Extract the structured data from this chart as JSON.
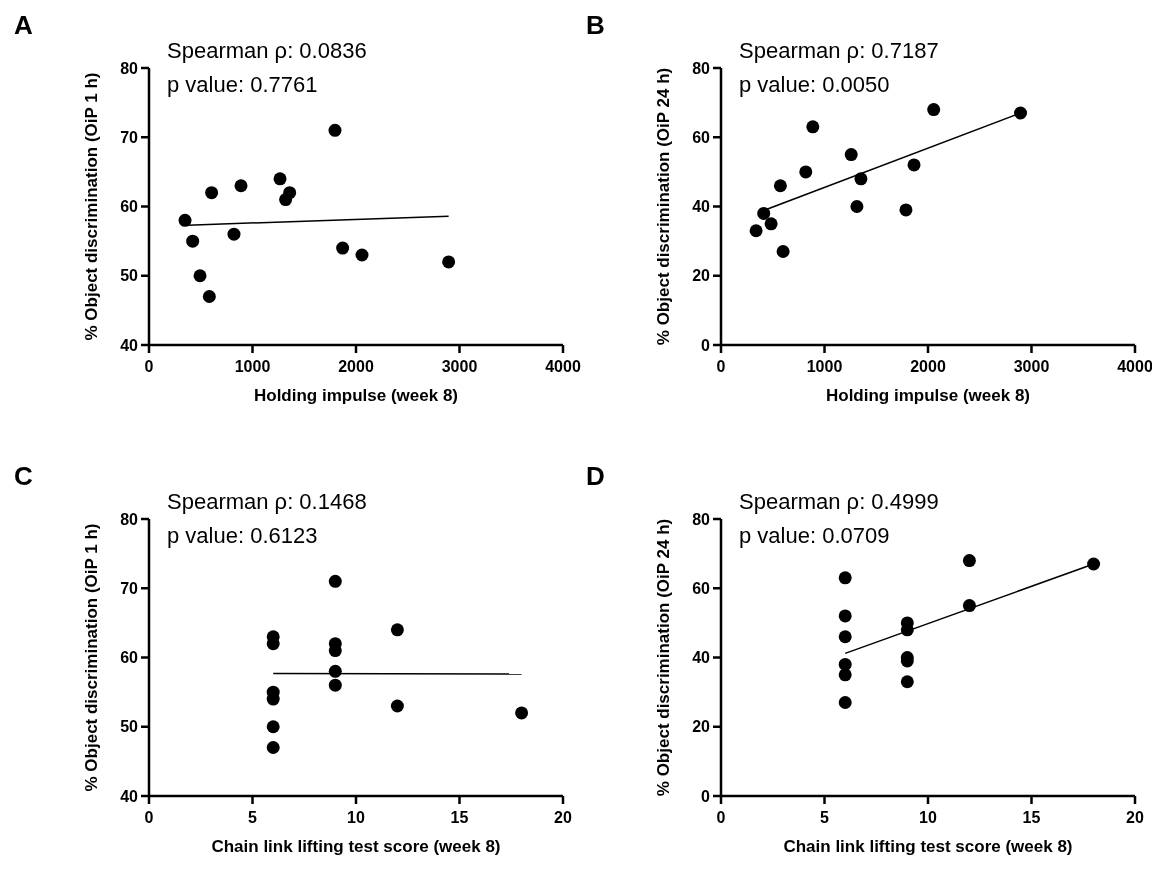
{
  "chart_data": [
    {
      "type": "scatter",
      "title": "A",
      "xlabel": "Holding impulse (week 8)",
      "ylabel": "% Object discrimination (OiP 1 h)",
      "annotations": [
        "Spearman ρ: 0.0836",
        "p value: 0.7761"
      ],
      "xlim": [
        0,
        4000
      ],
      "xticks": [
        0,
        1000,
        2000,
        3000,
        4000
      ],
      "ylim": [
        40,
        80
      ],
      "yticks": [
        40,
        50,
        60,
        70,
        80
      ],
      "grid": false,
      "series": [
        {
          "marker": "circle",
          "color": "#000000",
          "x": [
            348,
            422,
            493,
            583,
            605,
            821,
            889,
            1266,
            1320,
            1359,
            1797,
            1871,
            2058,
            2895
          ],
          "values": [
            58,
            55,
            50,
            47,
            62,
            56,
            63,
            64,
            61,
            62,
            71,
            54,
            53,
            52
          ]
        },
        {
          "type": "line",
          "marker": "none",
          "color": "#000000",
          "x": [
            374,
            2895
          ],
          "values": [
            57.3,
            58.6
          ]
        }
      ]
    },
    {
      "type": "scatter",
      "title": "B",
      "xlabel": "Holding impulse (week 8)",
      "ylabel": "% Object discrimination (OiP 24 h)",
      "annotations": [
        "Spearman ρ: 0.7187",
        "p value: 0.0050"
      ],
      "xlim": [
        0,
        4000
      ],
      "xticks": [
        0,
        1000,
        2000,
        3000,
        4000
      ],
      "ylim": [
        0,
        80
      ],
      "yticks": [
        0,
        20,
        40,
        60,
        80
      ],
      "grid": false,
      "series": [
        {
          "marker": "circle",
          "color": "#000000",
          "x": [
            339,
            413,
            484,
            574,
            600,
            819,
            887,
            1258,
            1313,
            1352,
            1787,
            1865,
            2055,
            2894
          ],
          "values": [
            33,
            38,
            35,
            46,
            27,
            50,
            63,
            55,
            40,
            48,
            39,
            52,
            68,
            67
          ]
        },
        {
          "type": "line",
          "marker": "none",
          "color": "#000000",
          "x": [
            365,
            2894
          ],
          "values": [
            38.3,
            67
          ]
        }
      ]
    },
    {
      "type": "scatter",
      "title": "C",
      "xlabel": "Chain link lifting test score (week 8)",
      "ylabel": "% Object discrimination (OiP 1 h)",
      "annotations": [
        "Spearman ρ: 0.1468",
        "p value: 0.6123"
      ],
      "xlim": [
        0,
        20
      ],
      "xticks": [
        0,
        5,
        10,
        15,
        20
      ],
      "ylim": [
        40,
        80
      ],
      "yticks": [
        40,
        50,
        60,
        70,
        80
      ],
      "grid": false,
      "series": [
        {
          "marker": "circle",
          "color": "#000000",
          "x": [
            6,
            6,
            6,
            6,
            6,
            6,
            9,
            9,
            9,
            9,
            9,
            12,
            12,
            18
          ],
          "values": [
            63,
            62,
            55,
            54,
            50,
            47,
            71,
            62,
            61,
            58,
            56,
            64,
            53,
            52
          ]
        },
        {
          "type": "line",
          "marker": "none",
          "color": "#000000",
          "x": [
            6,
            18
          ],
          "values": [
            57.7,
            57.6
          ]
        }
      ]
    },
    {
      "type": "scatter",
      "title": "D",
      "xlabel": "Chain link lifting test score (week 8)",
      "ylabel": "% Object discrimination (OiP 24 h)",
      "annotations": [
        "Spearman ρ: 0.4999",
        "p value: 0.0709"
      ],
      "xlim": [
        0,
        20
      ],
      "xticks": [
        0,
        5,
        10,
        15,
        20
      ],
      "ylim": [
        0,
        80
      ],
      "yticks": [
        0,
        20,
        40,
        60,
        80
      ],
      "grid": false,
      "series": [
        {
          "marker": "circle",
          "color": "#000000",
          "x": [
            6,
            6,
            6,
            6,
            6,
            6,
            9,
            9,
            9,
            9,
            9,
            12,
            12,
            18
          ],
          "values": [
            63,
            52,
            46,
            38,
            35,
            27,
            50,
            48,
            40,
            39,
            33,
            68,
            55,
            67
          ]
        },
        {
          "type": "line",
          "marker": "none",
          "color": "#000000",
          "x": [
            6,
            18
          ],
          "values": [
            41.2,
            67
          ]
        }
      ]
    }
  ]
}
